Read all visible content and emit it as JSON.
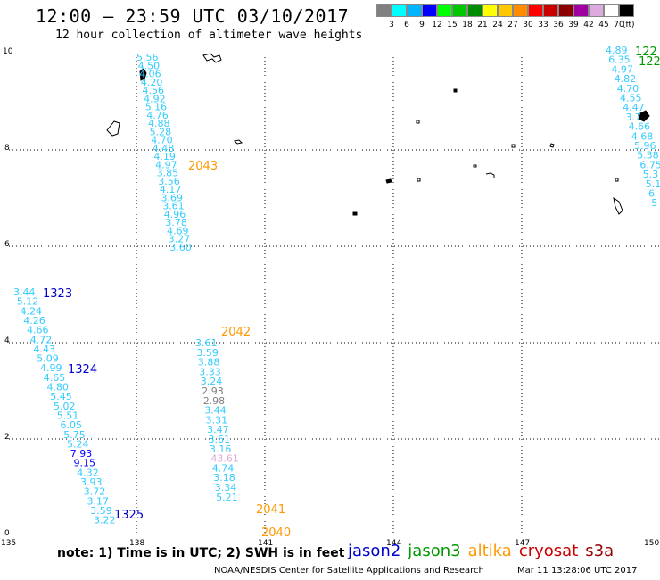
{
  "header": {
    "title": "12:00 – 23:59 UTC 03/10/2017",
    "subtitle": "12 hour collection of altimeter wave heights"
  },
  "scale": {
    "labels": [
      "3",
      "6",
      "9",
      "12",
      "15",
      "18",
      "21",
      "24",
      "27",
      "30",
      "33",
      "36",
      "39",
      "42",
      "45",
      "70"
    ],
    "unit": "(ft)",
    "colors": [
      "#808080",
      "#00ffff",
      "#00b4ff",
      "#0000ff",
      "#00ff00",
      "#00c800",
      "#008c00",
      "#ffff00",
      "#ffc800",
      "#ff8c00",
      "#ff0000",
      "#c80000",
      "#8c0000",
      "#a000a0",
      "#dcaadc",
      "#ffffff",
      "#000000"
    ]
  },
  "axes": {
    "x_ticks": [
      "135",
      "138",
      "141",
      "144",
      "147",
      "150"
    ],
    "y_ticks": [
      "0",
      "2",
      "4",
      "6",
      "8",
      "10"
    ]
  },
  "tracks": [
    {
      "pass_label": "2043",
      "pass_color": "#ff9900",
      "label_at": "8.28",
      "points": [
        {
          "v": "5.56",
          "c": "#33ccff"
        },
        {
          "v": "4.50",
          "c": "#33ccff"
        },
        {
          "v": "4.06",
          "c": "#33ccff"
        },
        {
          "v": "4.20",
          "c": "#33ccff"
        },
        {
          "v": "4.56",
          "c": "#33ccff"
        },
        {
          "v": "4.92",
          "c": "#33ccff"
        },
        {
          "v": "5.16",
          "c": "#33ccff"
        },
        {
          "v": "4.76",
          "c": "#33ccff"
        },
        {
          "v": "4.88",
          "c": "#33ccff"
        },
        {
          "v": "5.28",
          "c": "#33ccff"
        },
        {
          "v": "4.70",
          "c": "#33ccff"
        },
        {
          "v": "4.48",
          "c": "#33ccff"
        },
        {
          "v": "4.19",
          "c": "#33ccff"
        },
        {
          "v": "4.97",
          "c": "#33ccff"
        },
        {
          "v": "3.85",
          "c": "#33ccff"
        },
        {
          "v": "3.56",
          "c": "#33ccff"
        },
        {
          "v": "4.17",
          "c": "#33ccff"
        },
        {
          "v": "3.69",
          "c": "#33ccff"
        },
        {
          "v": "3.61",
          "c": "#33ccff"
        },
        {
          "v": "4.96",
          "c": "#33ccff"
        },
        {
          "v": "3.78",
          "c": "#33ccff"
        },
        {
          "v": "4.69",
          "c": "#33ccff"
        },
        {
          "v": "3.27",
          "c": "#33ccff"
        },
        {
          "v": "3.60",
          "c": "#33ccff"
        }
      ]
    },
    {
      "pass_label": "2042",
      "pass_color": "#ff9900",
      "points": [
        {
          "v": "3.61",
          "c": "#33ccff"
        },
        {
          "v": "3.59",
          "c": "#33ccff"
        },
        {
          "v": "3.88",
          "c": "#33ccff"
        },
        {
          "v": "3.33",
          "c": "#33ccff"
        },
        {
          "v": "3.24",
          "c": "#33ccff"
        },
        {
          "v": "2.93",
          "c": "#808080"
        },
        {
          "v": "2.98",
          "c": "#808080"
        },
        {
          "v": "3.44",
          "c": "#33ccff"
        },
        {
          "v": "3.31",
          "c": "#33ccff"
        },
        {
          "v": "3.47",
          "c": "#33ccff"
        },
        {
          "v": "3.61",
          "c": "#33ccff"
        },
        {
          "v": "3.16",
          "c": "#33ccff"
        },
        {
          "v": "43.61",
          "c": "#dcaadc"
        },
        {
          "v": "4.74",
          "c": "#33ccff"
        },
        {
          "v": "3.18",
          "c": "#33ccff"
        },
        {
          "v": "3.34",
          "c": "#33ccff"
        },
        {
          "v": "5.21",
          "c": "#33ccff"
        }
      ]
    },
    {
      "pass_label": "1323",
      "pass_color": "#0000cc",
      "points": [
        {
          "v": "3.44",
          "c": "#33ccff"
        },
        {
          "v": "5.12",
          "c": "#33ccff"
        },
        {
          "v": "4.24",
          "c": "#33ccff"
        },
        {
          "v": "4.26",
          "c": "#33ccff"
        },
        {
          "v": "4.66",
          "c": "#33ccff"
        },
        {
          "v": "4.72",
          "c": "#33ccff"
        },
        {
          "v": "4.43",
          "c": "#33ccff"
        },
        {
          "v": "5.09",
          "c": "#33ccff"
        },
        {
          "v": "4.99",
          "c": "#33ccff"
        },
        {
          "v": "4.65",
          "c": "#33ccff"
        },
        {
          "v": "4.80",
          "c": "#33ccff"
        },
        {
          "v": "5.45",
          "c": "#33ccff"
        },
        {
          "v": "5.02",
          "c": "#33ccff"
        },
        {
          "v": "5.51",
          "c": "#33ccff"
        },
        {
          "v": "6.05",
          "c": "#33ccff"
        },
        {
          "v": "5.75",
          "c": "#33ccff"
        },
        {
          "v": "5.24",
          "c": "#33ccff"
        },
        {
          "v": "7.93",
          "c": "#0000ff"
        },
        {
          "v": "9.15",
          "c": "#0000ff"
        },
        {
          "v": "4.32",
          "c": "#33ccff"
        },
        {
          "v": "3.93",
          "c": "#33ccff"
        },
        {
          "v": "3.72",
          "c": "#33ccff"
        },
        {
          "v": "3.17",
          "c": "#33ccff"
        },
        {
          "v": "3.59",
          "c": "#33ccff"
        },
        {
          "v": "3.22",
          "c": "#33ccff"
        }
      ]
    },
    {
      "pass_label": "122",
      "pass_color": "#009900",
      "points": [
        {
          "v": "4.89",
          "c": "#33ccff"
        },
        {
          "v": "6.35",
          "c": "#33ccff"
        },
        {
          "v": "4.97",
          "c": "#33ccff"
        },
        {
          "v": "4.82",
          "c": "#33ccff"
        },
        {
          "v": "4.70",
          "c": "#33ccff"
        },
        {
          "v": "4.55",
          "c": "#33ccff"
        },
        {
          "v": "4.47",
          "c": "#33ccff"
        },
        {
          "v": "3.7",
          "c": "#33ccff"
        },
        {
          "v": "4.66",
          "c": "#33ccff"
        },
        {
          "v": "4.68",
          "c": "#33ccff"
        },
        {
          "v": "5.96",
          "c": "#33ccff"
        },
        {
          "v": "5.38",
          "c": "#33ccff"
        },
        {
          "v": "6.75",
          "c": "#33ccff"
        },
        {
          "v": "5.3",
          "c": "#33ccff"
        },
        {
          "v": "5.1",
          "c": "#33ccff"
        },
        {
          "v": "6",
          "c": "#33ccff"
        },
        {
          "v": "5",
          "c": "#33ccff"
        }
      ]
    }
  ],
  "pass_labels": {
    "l2043": "2043",
    "l2042": "2042",
    "l2041": "2041",
    "l2040": "2040",
    "l1323": "1323",
    "l1324": "1324",
    "l1325": "1325",
    "l122a": "122",
    "l122b": "122"
  },
  "footer": {
    "note": "note:  1) Time is in UTC;  2) SWH is in feet",
    "missions": [
      {
        "name": "jason2",
        "color": "#0000cc"
      },
      {
        "name": "jason3",
        "color": "#009900"
      },
      {
        "name": "altika",
        "color": "#ff9900"
      },
      {
        "name": "cryosat",
        "color": "#cc0000"
      },
      {
        "name": "s3a",
        "color": "#990000"
      }
    ],
    "credit": "NOAA/NESDIS Center for Satellite Applications and Research",
    "timestamp": "Mar 11 13:28:06 UTC 2017"
  }
}
